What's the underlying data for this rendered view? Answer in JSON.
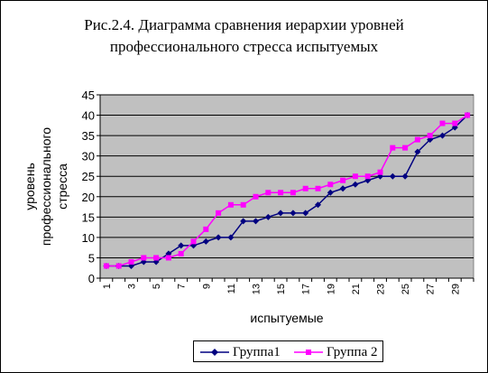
{
  "chart_data": {
    "type": "line",
    "title_line1": "Рис.2.4. Диаграмма сравнения  иерархии уровней",
    "title_line2": "профессионального стресса испытуемых",
    "xlabel": "испытуемые",
    "ylabel_line1": "уровень",
    "ylabel_line2": "профессионального",
    "ylabel_line3": "стресса",
    "ylim": [
      0,
      45
    ],
    "yticks": [
      0,
      5,
      10,
      15,
      20,
      25,
      30,
      35,
      40,
      45
    ],
    "x": [
      1,
      2,
      3,
      4,
      5,
      6,
      7,
      8,
      9,
      10,
      11,
      12,
      13,
      14,
      15,
      16,
      17,
      18,
      19,
      20,
      21,
      22,
      23,
      24,
      25,
      26,
      27,
      28,
      29,
      30
    ],
    "xtick_labels": [
      "1",
      "3",
      "5",
      "7",
      "9",
      "11",
      "13",
      "15",
      "17",
      "19",
      "21",
      "23",
      "25",
      "27",
      "29"
    ],
    "grid": "horizontal",
    "legend_position": "bottom",
    "series": [
      {
        "name": "Группа1",
        "color": "#000080",
        "marker": "diamond",
        "values": [
          3,
          3,
          3,
          4,
          4,
          6,
          8,
          8,
          9,
          10,
          10,
          14,
          14,
          15,
          16,
          16,
          16,
          18,
          21,
          22,
          23,
          24,
          25,
          25,
          25,
          31,
          34,
          35,
          37,
          40
        ]
      },
      {
        "name": "Группа 2",
        "color": "#ff00ff",
        "marker": "square",
        "values": [
          3,
          3,
          4,
          5,
          5,
          5,
          6,
          9,
          12,
          16,
          18,
          18,
          20,
          21,
          21,
          21,
          22,
          22,
          23,
          24,
          25,
          25,
          26,
          32,
          32,
          34,
          35,
          38,
          38,
          40
        ]
      }
    ],
    "plot_background": "#c0c0c0"
  }
}
